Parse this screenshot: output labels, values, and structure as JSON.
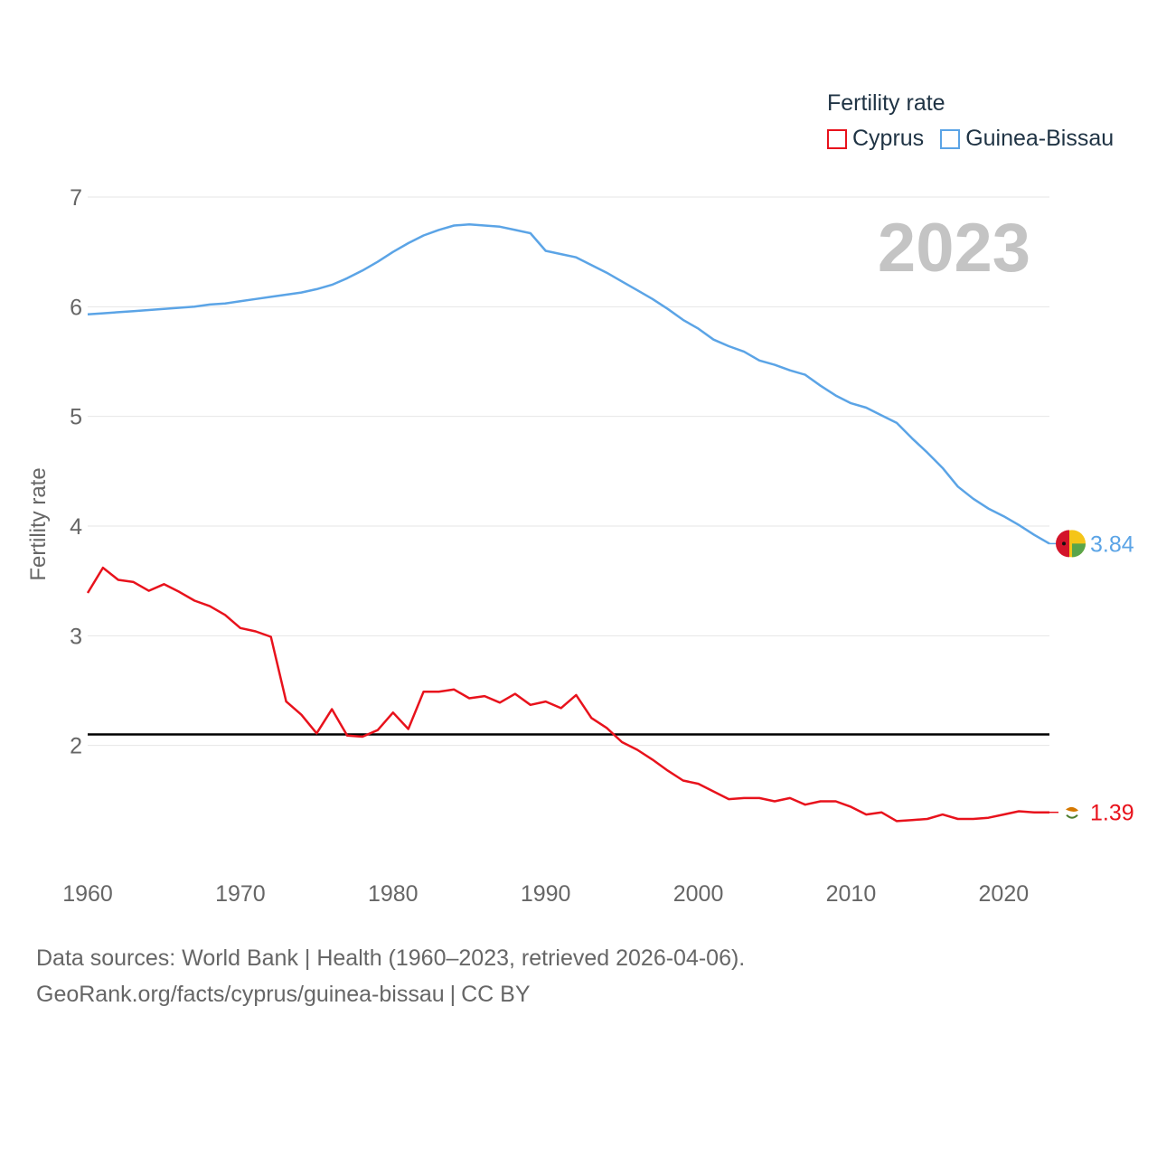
{
  "chart_data": {
    "type": "line",
    "legend_title": "Fertility rate",
    "ylabel": "Fertility rate",
    "xlabel": "",
    "year_label": "2023",
    "xlim": [
      1960,
      2023
    ],
    "ylim": [
      1.0,
      7.0
    ],
    "x_ticks": [
      1960,
      1970,
      1980,
      1990,
      2000,
      2010,
      2020
    ],
    "y_ticks": [
      2,
      3,
      4,
      5,
      6,
      7
    ],
    "reference_line": 2.1,
    "x": [
      1960,
      1961,
      1962,
      1963,
      1964,
      1965,
      1966,
      1967,
      1968,
      1969,
      1970,
      1971,
      1972,
      1973,
      1974,
      1975,
      1976,
      1977,
      1978,
      1979,
      1980,
      1981,
      1982,
      1983,
      1984,
      1985,
      1986,
      1987,
      1988,
      1989,
      1990,
      1991,
      1992,
      1993,
      1994,
      1995,
      1996,
      1997,
      1998,
      1999,
      2000,
      2001,
      2002,
      2003,
      2004,
      2005,
      2006,
      2007,
      2008,
      2009,
      2010,
      2011,
      2012,
      2013,
      2014,
      2015,
      2016,
      2017,
      2018,
      2019,
      2020,
      2021,
      2022,
      2023
    ],
    "series": [
      {
        "name": "Cyprus",
        "color": "#e8121c",
        "end_label": "1.39",
        "values": [
          3.39,
          3.62,
          3.51,
          3.49,
          3.41,
          3.47,
          3.4,
          3.32,
          3.27,
          3.19,
          3.07,
          3.04,
          2.99,
          2.4,
          2.28,
          2.11,
          2.33,
          2.09,
          2.08,
          2.14,
          2.3,
          2.15,
          2.49,
          2.49,
          2.51,
          2.43,
          2.45,
          2.39,
          2.47,
          2.37,
          2.4,
          2.34,
          2.46,
          2.25,
          2.16,
          2.03,
          1.96,
          1.87,
          1.77,
          1.68,
          1.65,
          1.58,
          1.51,
          1.52,
          1.52,
          1.49,
          1.52,
          1.46,
          1.49,
          1.49,
          1.44,
          1.37,
          1.39,
          1.31,
          1.32,
          1.33,
          1.37,
          1.33,
          1.33,
          1.34,
          1.37,
          1.4,
          1.39,
          1.39
        ]
      },
      {
        "name": "Guinea-Bissau",
        "color": "#5ba4e6",
        "end_label": "3.84",
        "values": [
          5.93,
          5.94,
          5.95,
          5.96,
          5.97,
          5.98,
          5.99,
          6.0,
          6.02,
          6.03,
          6.05,
          6.07,
          6.09,
          6.11,
          6.13,
          6.16,
          6.2,
          6.26,
          6.33,
          6.41,
          6.5,
          6.58,
          6.65,
          6.7,
          6.74,
          6.75,
          6.74,
          6.73,
          6.7,
          6.67,
          6.51,
          6.48,
          6.45,
          6.38,
          6.31,
          6.23,
          6.15,
          6.07,
          5.98,
          5.88,
          5.8,
          5.7,
          5.64,
          5.59,
          5.51,
          5.47,
          5.42,
          5.38,
          5.28,
          5.19,
          5.12,
          5.08,
          5.01,
          4.94,
          4.8,
          4.67,
          4.53,
          4.36,
          4.25,
          4.16,
          4.09,
          4.01,
          3.92,
          3.84
        ]
      }
    ]
  },
  "footer": {
    "sources": "Data sources: World Bank | Health (1960–2023, retrieved 2026-04-06).",
    "url": "GeoRank.org/facts/cyprus/guinea-bissau",
    "license": "CC BY"
  },
  "colors": {
    "grid": "#e6e6e6",
    "axis_text": "#666666",
    "year_watermark": "#c4c4c4",
    "reference": "#000000"
  }
}
